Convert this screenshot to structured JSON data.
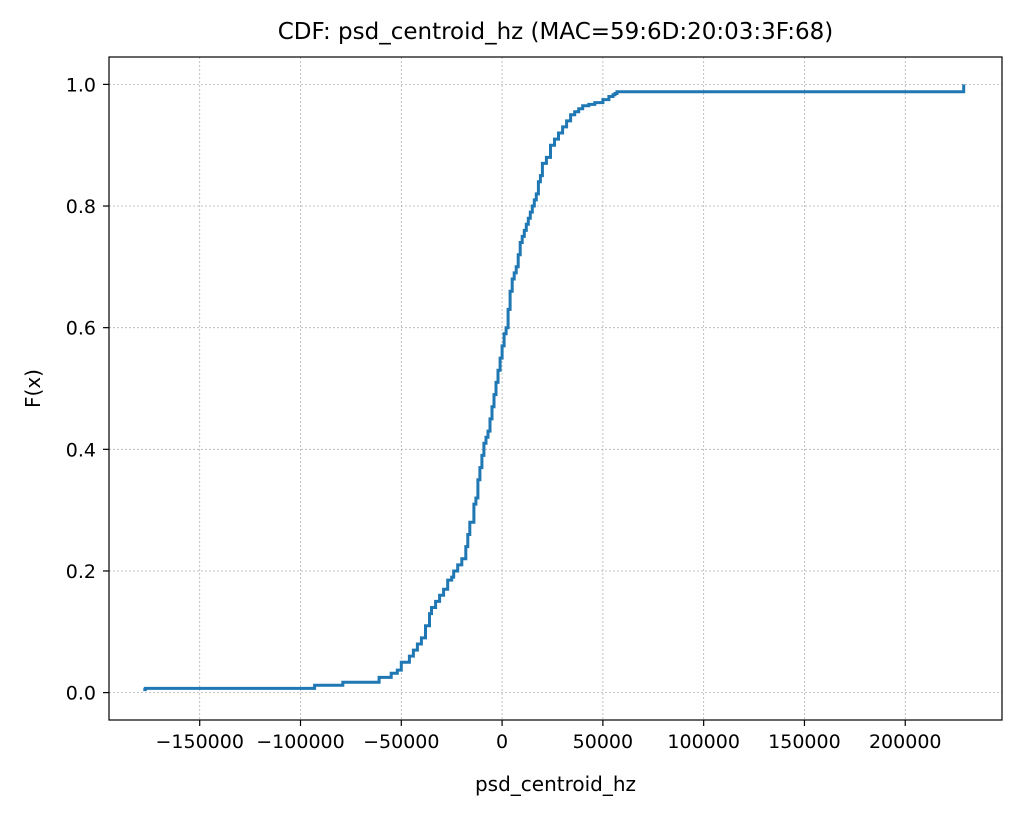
{
  "chart_data": {
    "type": "line",
    "title": "CDF: psd_centroid_hz (MAC=59:6D:20:03:3F:68)",
    "xlabel": "psd_centroid_hz",
    "ylabel": "F(x)",
    "xlim": [
      -195000,
      248000
    ],
    "ylim": [
      -0.045,
      1.045
    ],
    "grid": true,
    "x_ticks": [
      -150000,
      -100000,
      -50000,
      0,
      50000,
      100000,
      150000,
      200000
    ],
    "x_tick_labels": [
      "−150000",
      "−100000",
      "−50000",
      "0",
      "50000",
      "100000",
      "150000",
      "200000"
    ],
    "y_ticks": [
      0.0,
      0.2,
      0.4,
      0.6,
      0.8,
      1.0
    ],
    "y_tick_labels": [
      "0.0",
      "0.2",
      "0.4",
      "0.6",
      "0.8",
      "1.0"
    ],
    "series": [
      {
        "color": "#1f77b4",
        "step": true,
        "x": [
          -178000,
          -177000,
          -93000,
          -79000,
          -61000,
          -55000,
          -52000,
          -50000,
          -46000,
          -44000,
          -42000,
          -40000,
          -38000,
          -36000,
          -35000,
          -33000,
          -31000,
          -29000,
          -27000,
          -25000,
          -24000,
          -22000,
          -20000,
          -18000,
          -17000,
          -16000,
          -14000,
          -13000,
          -12000,
          -11000,
          -10000,
          -9000,
          -8000,
          -7000,
          -6000,
          -5000,
          -4000,
          -3000,
          -2000,
          -1000,
          0,
          1000,
          2000,
          3000,
          4000,
          5000,
          6000,
          7000,
          8000,
          9000,
          10000,
          11000,
          12000,
          13000,
          14000,
          15000,
          16000,
          17000,
          18000,
          19000,
          20000,
          22000,
          24000,
          26000,
          28000,
          30000,
          32000,
          34000,
          36000,
          38000,
          40000,
          43000,
          46000,
          50000,
          53000,
          55000,
          56000,
          57000,
          228000,
          229000
        ],
        "y": [
          0.005,
          0.007,
          0.012,
          0.017,
          0.025,
          0.032,
          0.037,
          0.05,
          0.06,
          0.07,
          0.08,
          0.09,
          0.11,
          0.13,
          0.14,
          0.15,
          0.16,
          0.17,
          0.185,
          0.19,
          0.2,
          0.21,
          0.22,
          0.24,
          0.26,
          0.28,
          0.31,
          0.32,
          0.35,
          0.37,
          0.39,
          0.41,
          0.42,
          0.43,
          0.45,
          0.47,
          0.49,
          0.51,
          0.53,
          0.55,
          0.57,
          0.59,
          0.6,
          0.63,
          0.66,
          0.68,
          0.69,
          0.7,
          0.72,
          0.74,
          0.75,
          0.76,
          0.77,
          0.78,
          0.79,
          0.8,
          0.81,
          0.82,
          0.84,
          0.85,
          0.87,
          0.88,
          0.9,
          0.91,
          0.92,
          0.93,
          0.94,
          0.95,
          0.955,
          0.96,
          0.965,
          0.967,
          0.97,
          0.975,
          0.98,
          0.983,
          0.985,
          0.988,
          0.988,
          1.0
        ]
      }
    ]
  }
}
